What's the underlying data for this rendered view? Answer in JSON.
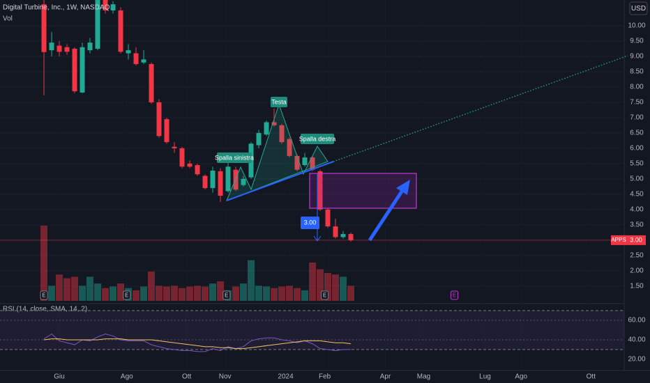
{
  "header": {
    "title": "Digital Turbine, Inc., 1W, NASDAQ",
    "currency": "USD",
    "volume_label": "Vol"
  },
  "chart_data": [
    {
      "type": "candlestick",
      "x": [
        0,
        1,
        2,
        3,
        4,
        5,
        6,
        7,
        8,
        9,
        10,
        11,
        12,
        13,
        14,
        15,
        16,
        17,
        18,
        19,
        20,
        21,
        22,
        23,
        24,
        25,
        26,
        27,
        28,
        29,
        30,
        31,
        32,
        33,
        34,
        35,
        36,
        37,
        38,
        39,
        40
      ],
      "open": [
        10.7,
        9.2,
        9.35,
        9.3,
        9.25,
        7.82,
        9.2,
        9.25,
        10.84,
        10.5,
        10.5,
        9.1,
        9.1,
        8.8,
        8.75,
        7.5,
        6.95,
        6.05,
        6.0,
        5.5,
        5.45,
        5.1,
        4.7,
        5.25,
        4.6,
        5.3,
        4.8,
        5.05,
        6.1,
        6.45,
        6.85,
        6.75,
        6.3,
        5.75,
        5.45,
        5.7,
        5.25,
        4.0,
        3.45,
        3.1,
        3.2
      ],
      "high": [
        10.84,
        9.8,
        9.5,
        9.4,
        9.3,
        9.45,
        9.6,
        10.84,
        10.84,
        10.8,
        10.6,
        9.4,
        9.3,
        9.2,
        8.8,
        7.6,
        7.0,
        6.2,
        6.05,
        5.6,
        5.5,
        5.15,
        5.4,
        5.35,
        5.55,
        5.4,
        5.1,
        6.2,
        6.6,
        6.9,
        7.3,
        6.8,
        6.35,
        5.8,
        5.85,
        5.75,
        5.3,
        4.05,
        3.7,
        3.3,
        3.25
      ],
      "low": [
        7.73,
        9.0,
        9.0,
        9.05,
        7.8,
        7.8,
        9.1,
        9.2,
        10.4,
        10.4,
        9.1,
        8.9,
        8.7,
        8.75,
        7.45,
        6.35,
        6.15,
        5.85,
        5.35,
        5.35,
        5.1,
        4.65,
        4.55,
        4.25,
        4.55,
        4.6,
        4.75,
        5.0,
        6.0,
        6.4,
        6.7,
        6.15,
        5.7,
        5.25,
        5.4,
        5.25,
        3.95,
        3.4,
        3.05,
        3.05,
        2.95
      ],
      "close": [
        9.14,
        9.45,
        9.15,
        9.15,
        7.86,
        9.3,
        9.45,
        10.84,
        10.5,
        10.7,
        9.15,
        9.2,
        8.75,
        8.9,
        7.5,
        6.4,
        6.2,
        6.0,
        5.4,
        5.4,
        5.15,
        4.7,
        5.27,
        4.45,
        5.4,
        4.65,
        5.0,
        6.15,
        6.5,
        6.85,
        6.75,
        6.2,
        5.75,
        5.3,
        5.7,
        5.3,
        4.0,
        3.45,
        3.1,
        3.2,
        3.0
      ],
      "volume": [
        100,
        20,
        35,
        30,
        32,
        20,
        32,
        23,
        17,
        19,
        23,
        17,
        14,
        19,
        39,
        20,
        19,
        20,
        17,
        19,
        20,
        19,
        23,
        26,
        14,
        19,
        23,
        54,
        20,
        19,
        17,
        19,
        20,
        17,
        14,
        51,
        42,
        37,
        35,
        32,
        20
      ],
      "up_color": "#22ab94",
      "down_color": "#f23645",
      "xlim": [
        -5.73,
        75.18
      ],
      "xticks": [
        {
          "value": 2,
          "label": "Giu"
        },
        {
          "value": 10.8,
          "label": "Ago"
        },
        {
          "value": 18.6,
          "label": "Ott"
        },
        {
          "value": 23.6,
          "label": "Nov"
        },
        {
          "value": 31.5,
          "label": "2024"
        },
        {
          "value": 36.6,
          "label": "Feb"
        },
        {
          "value": 44.5,
          "label": "Apr"
        },
        {
          "value": 49.5,
          "label": "Mag"
        },
        {
          "value": 57.5,
          "label": "Lug"
        },
        {
          "value": 62.2,
          "label": "Ago"
        },
        {
          "value": 71.3,
          "label": "Ott"
        }
      ],
      "ylim": [
        1.02,
        10.84
      ],
      "yticks": [
        {
          "value": 1.5,
          "label": "1.50"
        },
        {
          "value": 2,
          "label": "2.00"
        },
        {
          "value": 2.5,
          "label": "2.50"
        },
        {
          "value": 3,
          "label": "3.00"
        },
        {
          "value": 3.5,
          "label": "3.50"
        },
        {
          "value": 4,
          "label": "4.00"
        },
        {
          "value": 4.5,
          "label": "4.50"
        },
        {
          "value": 5,
          "label": "5.00"
        },
        {
          "value": 5.5,
          "label": "5.50"
        },
        {
          "value": 6,
          "label": "6.00"
        },
        {
          "value": 6.5,
          "label": "6.50"
        },
        {
          "value": 7,
          "label": "7.00"
        },
        {
          "value": 7.5,
          "label": "7.50"
        },
        {
          "value": 8,
          "label": "8.00"
        },
        {
          "value": 8.5,
          "label": "8.50"
        },
        {
          "value": 9,
          "label": "9.00"
        },
        {
          "value": 9.5,
          "label": "9.50"
        },
        {
          "value": 10,
          "label": "10.00"
        }
      ],
      "last_price": {
        "symbol": "APPS",
        "value": 3,
        "label": "3.00"
      },
      "annotations": [
        "Spalla sinistra",
        "Testa",
        "Spalla destra",
        "3.00"
      ],
      "events": [
        {
          "label": "E",
          "x": 0
        },
        {
          "label": "E",
          "x": 10.8
        },
        {
          "label": "E",
          "x": 23.8
        },
        {
          "label": "E",
          "x": 36.6
        },
        {
          "label": "E",
          "x": 53.5
        }
      ]
    },
    {
      "type": "line",
      "title": "RSI (14, close, SMA, 14, 2)",
      "series": [
        {
          "color": "#7e57c2",
          "values": [
            41,
            46,
            39,
            37,
            35,
            40,
            39,
            43,
            46,
            44,
            40,
            39,
            39,
            39,
            35,
            33,
            31,
            30,
            29,
            29,
            28,
            28,
            31,
            29,
            33,
            31,
            33,
            39,
            41,
            42,
            42,
            40,
            39,
            37,
            39,
            36,
            31,
            30,
            29,
            30,
            30
          ]
        },
        {
          "color": "#f7c35f",
          "values": [
            40,
            41,
            41,
            40,
            40,
            40,
            40,
            40,
            41,
            41,
            41,
            40,
            40,
            40,
            40,
            39,
            38,
            37,
            36,
            35,
            34,
            33,
            33,
            32,
            32,
            31,
            31,
            32,
            33,
            34,
            35,
            36,
            37,
            38,
            39,
            39,
            39,
            38,
            37,
            37,
            36
          ]
        }
      ],
      "bands": [
        30,
        70
      ],
      "ylim": [
        8.6,
        74.3
      ],
      "yticks": [
        {
          "value": 20,
          "label": "20.00"
        },
        {
          "value": 40,
          "label": "40.00"
        },
        {
          "value": 60,
          "label": "60.00"
        }
      ]
    }
  ]
}
